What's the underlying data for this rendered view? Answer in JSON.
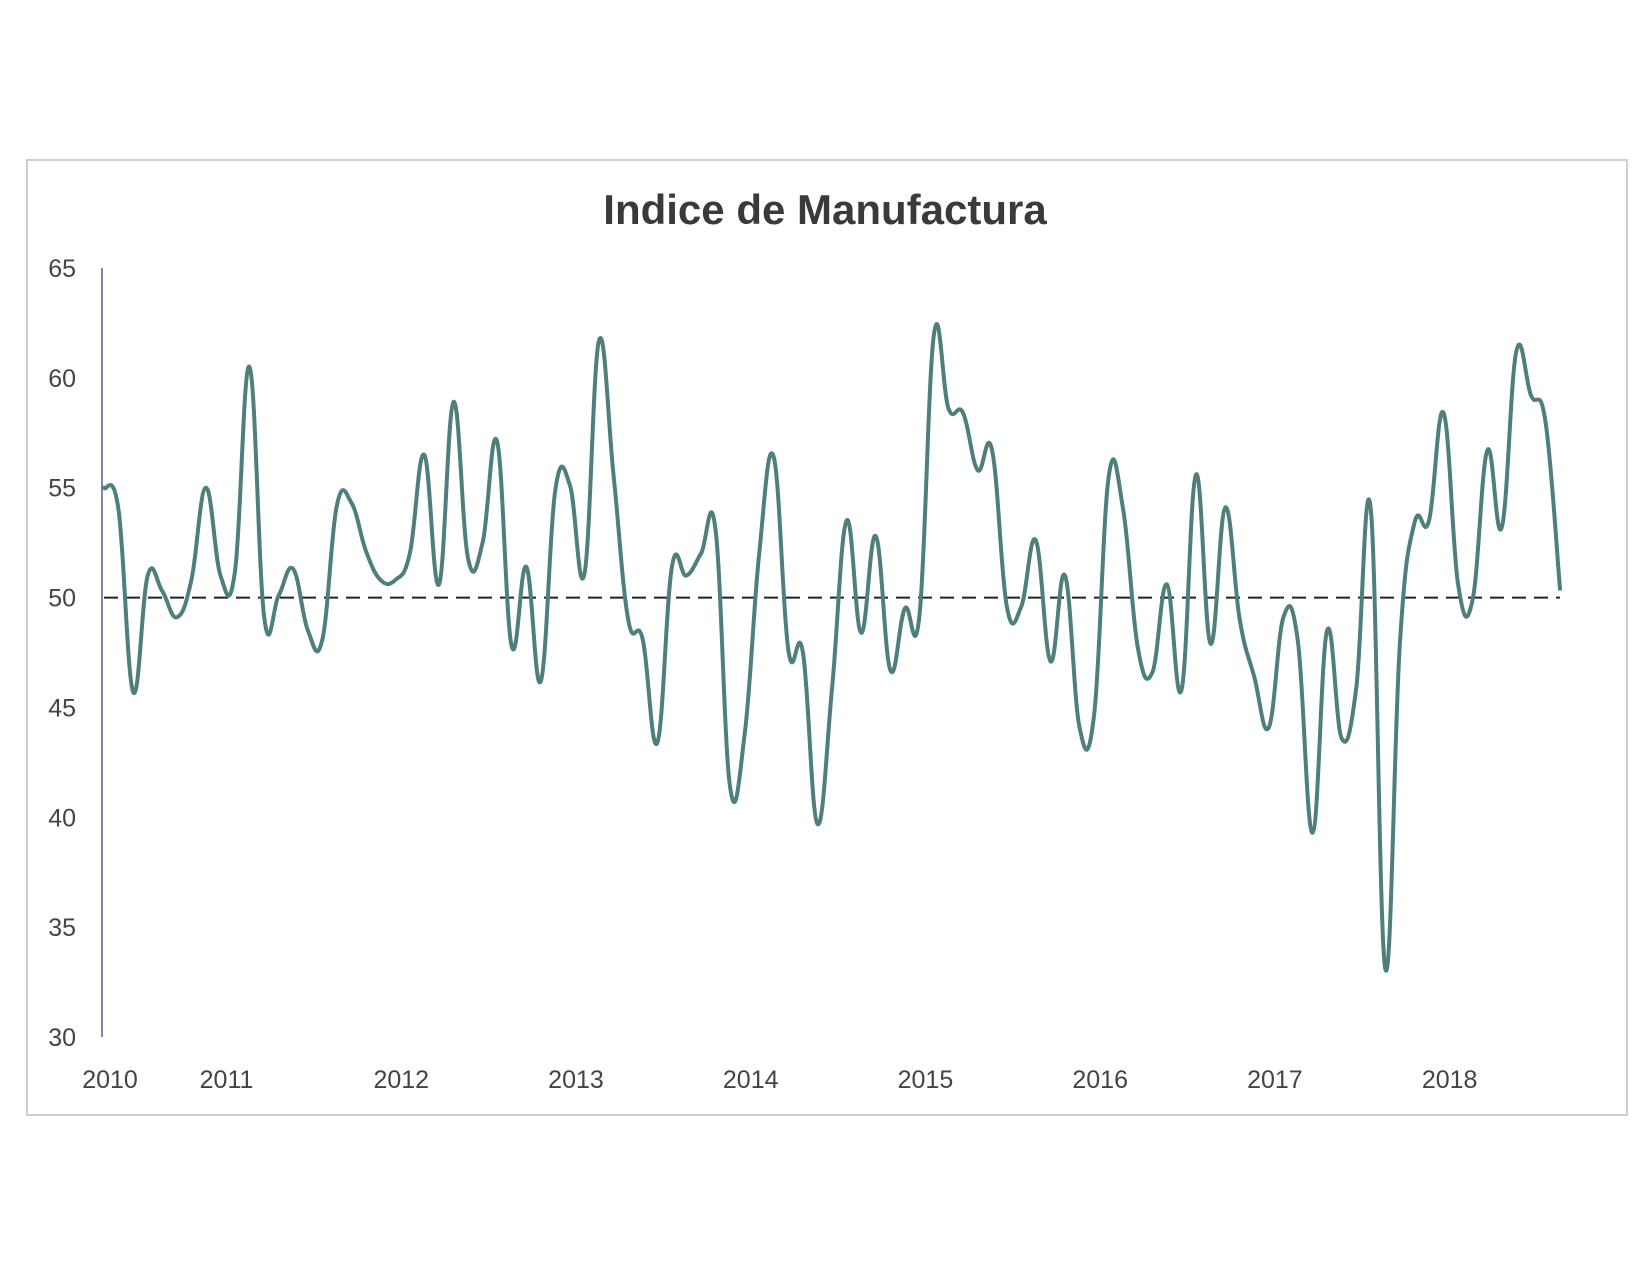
{
  "chart_data": {
    "type": "line",
    "title": "Indice de Manufactura",
    "xlabel": "",
    "ylabel": "",
    "ylim": [
      30,
      65
    ],
    "y_ticks": [
      30,
      35,
      40,
      45,
      50,
      55,
      60,
      65
    ],
    "x_ticks": [
      {
        "label": "2010",
        "x": 2010.0
      },
      {
        "label": "2011",
        "x": 2010.667
      },
      {
        "label": "2012",
        "x": 2011.667
      },
      {
        "label": "2013",
        "x": 2012.667
      },
      {
        "label": "2014",
        "x": 2013.667
      },
      {
        "label": "2015",
        "x": 2014.667
      },
      {
        "label": "2016",
        "x": 2015.667
      },
      {
        "label": "2017",
        "x": 2016.667
      },
      {
        "label": "2018",
        "x": 2017.667
      }
    ],
    "x_range": [
      2010.0,
      2018.333
    ],
    "reference_line": {
      "y": 50,
      "style": "dashed",
      "color": "#222222"
    },
    "grid": false,
    "legend": "none",
    "series": [
      {
        "color": "#4e7f7c",
        "points": [
          [
            2010.0,
            55.0
          ],
          [
            2010.083,
            54.0
          ],
          [
            2010.167,
            45.7
          ],
          [
            2010.25,
            51.0
          ],
          [
            2010.333,
            50.3
          ],
          [
            2010.417,
            49.1
          ],
          [
            2010.5,
            50.8
          ],
          [
            2010.583,
            55.0
          ],
          [
            2010.667,
            51.0
          ],
          [
            2010.75,
            51.2
          ],
          [
            2010.833,
            60.5
          ],
          [
            2010.917,
            49.1
          ],
          [
            2011.0,
            50.1
          ],
          [
            2011.083,
            51.3
          ],
          [
            2011.167,
            48.5
          ],
          [
            2011.25,
            48.1
          ],
          [
            2011.333,
            54.2
          ],
          [
            2011.417,
            54.3
          ],
          [
            2011.5,
            52.1
          ],
          [
            2011.583,
            50.8
          ],
          [
            2011.667,
            50.8
          ],
          [
            2011.75,
            52.0
          ],
          [
            2011.833,
            56.5
          ],
          [
            2011.917,
            50.6
          ],
          [
            2012.0,
            58.9
          ],
          [
            2012.083,
            51.8
          ],
          [
            2012.167,
            52.5
          ],
          [
            2012.25,
            57.1
          ],
          [
            2012.333,
            47.8
          ],
          [
            2012.417,
            51.4
          ],
          [
            2012.5,
            46.2
          ],
          [
            2012.583,
            54.9
          ],
          [
            2012.667,
            55.1
          ],
          [
            2012.75,
            51.1
          ],
          [
            2012.833,
            61.7
          ],
          [
            2012.917,
            55.5
          ],
          [
            2013.0,
            49.0
          ],
          [
            2013.083,
            48.1
          ],
          [
            2013.167,
            43.4
          ],
          [
            2013.25,
            51.4
          ],
          [
            2013.333,
            51.0
          ],
          [
            2013.417,
            52.0
          ],
          [
            2013.5,
            53.1
          ],
          [
            2013.583,
            41.4
          ],
          [
            2013.667,
            43.8
          ],
          [
            2013.75,
            52.0
          ],
          [
            2013.833,
            56.4
          ],
          [
            2013.917,
            47.6
          ],
          [
            2014.0,
            47.5
          ],
          [
            2014.083,
            39.7
          ],
          [
            2014.167,
            45.9
          ],
          [
            2014.25,
            53.5
          ],
          [
            2014.333,
            48.4
          ],
          [
            2014.417,
            52.8
          ],
          [
            2014.5,
            46.7
          ],
          [
            2014.583,
            49.5
          ],
          [
            2014.667,
            49.2
          ],
          [
            2014.75,
            62.0
          ],
          [
            2014.833,
            58.6
          ],
          [
            2014.917,
            58.4
          ],
          [
            2015.0,
            55.8
          ],
          [
            2015.083,
            56.7
          ],
          [
            2015.167,
            49.6
          ],
          [
            2015.25,
            49.6
          ],
          [
            2015.333,
            52.6
          ],
          [
            2015.417,
            47.1
          ],
          [
            2015.5,
            51.0
          ],
          [
            2015.583,
            44.1
          ],
          [
            2015.667,
            44.7
          ],
          [
            2015.75,
            55.5
          ],
          [
            2015.833,
            54.0
          ],
          [
            2015.917,
            47.7
          ],
          [
            2016.0,
            46.6
          ],
          [
            2016.083,
            50.6
          ],
          [
            2016.167,
            45.8
          ],
          [
            2016.25,
            55.6
          ],
          [
            2016.333,
            47.9
          ],
          [
            2016.417,
            54.1
          ],
          [
            2016.5,
            49.0
          ],
          [
            2016.583,
            46.4
          ],
          [
            2016.667,
            44.1
          ],
          [
            2016.75,
            49.1
          ],
          [
            2016.833,
            48.0
          ],
          [
            2016.917,
            39.3
          ],
          [
            2017.0,
            48.5
          ],
          [
            2017.083,
            43.6
          ],
          [
            2017.167,
            45.9
          ],
          [
            2017.25,
            54.0
          ],
          [
            2017.333,
            33.1
          ],
          [
            2017.417,
            48.0
          ],
          [
            2017.5,
            53.4
          ],
          [
            2017.583,
            53.5
          ],
          [
            2017.667,
            58.4
          ],
          [
            2017.75,
            50.6
          ],
          [
            2017.833,
            49.9
          ],
          [
            2017.917,
            56.7
          ],
          [
            2018.0,
            53.2
          ],
          [
            2018.083,
            61.2
          ],
          [
            2018.167,
            59.2
          ],
          [
            2018.25,
            58.0
          ],
          [
            2018.333,
            50.4
          ]
        ]
      }
    ]
  }
}
